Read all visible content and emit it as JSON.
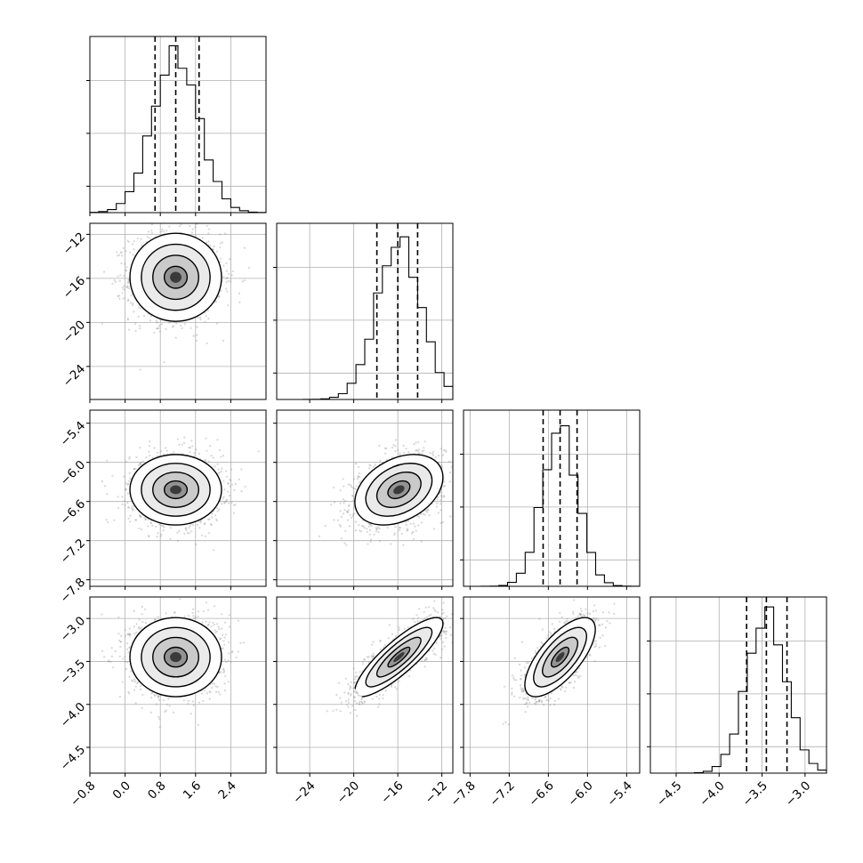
{
  "chart_data": {
    "type": "corner",
    "title": "",
    "n_params": 4,
    "parameters": [
      {
        "index": 0,
        "label": "",
        "range": [
          -0.8,
          3.2
        ],
        "ticks": [
          -0.8,
          0.0,
          0.8,
          1.6,
          2.4
        ],
        "tick_labels": [
          "−0.8",
          "0.0",
          "0.8",
          "1.6",
          "2.4"
        ],
        "mean": 1.15,
        "std": 0.52,
        "quantiles": [
          0.68,
          1.15,
          1.68
        ],
        "hist_peak_fraction": 0.9
      },
      {
        "index": 1,
        "label": "",
        "range": [
          -27,
          -11
        ],
        "ticks": [
          -24,
          -20,
          -16,
          -12
        ],
        "tick_labels": [
          "−24",
          "−20",
          "−16",
          "−12"
        ],
        "mean": -15.9,
        "std": 2.0,
        "quantiles": [
          -17.9,
          -16.0,
          -14.2
        ],
        "hist_peak_fraction": 0.9
      },
      {
        "index": 2,
        "label": "",
        "range": [
          -7.9,
          -5.2
        ],
        "ticks": [
          -7.8,
          -7.2,
          -6.6,
          -6.0,
          -5.4
        ],
        "tick_labels": [
          "−7.8",
          "−7.2",
          "−6.6",
          "−6.0",
          "−5.4"
        ],
        "mean": -6.42,
        "std": 0.27,
        "quantiles": [
          -6.68,
          -6.42,
          -6.16
        ],
        "hist_peak_fraction": 0.9
      },
      {
        "index": 3,
        "label": "",
        "range": [
          -4.8,
          -2.75
        ],
        "ticks": [
          -4.5,
          -4.0,
          -3.5,
          -3.0
        ],
        "tick_labels": [
          "−4.5",
          "−4.0",
          "−3.5",
          "−3.0"
        ],
        "mean": -3.45,
        "std": 0.23,
        "quantiles": [
          -3.68,
          -3.45,
          -3.21
        ],
        "hist_peak_fraction": 0.9
      }
    ],
    "diag_y_ticks": [
      0.15,
      0.45,
      0.75
    ],
    "correlations": [
      {
        "pair": [
          0,
          1
        ],
        "rho": 0.0
      },
      {
        "pair": [
          0,
          2
        ],
        "rho": 0.0
      },
      {
        "pair": [
          1,
          2
        ],
        "rho": 0.35
      },
      {
        "pair": [
          0,
          3
        ],
        "rho": 0.0
      },
      {
        "pair": [
          1,
          3
        ],
        "rho": 0.85
      },
      {
        "pair": [
          2,
          3
        ],
        "rho": 0.7
      }
    ],
    "contour_levels_sigma": [
      0.5,
      1.0,
      1.5,
      2.0
    ],
    "samples_per_panel": 1500,
    "grid": true,
    "histogram_style": "step",
    "quantile_line_style": "dashed"
  }
}
